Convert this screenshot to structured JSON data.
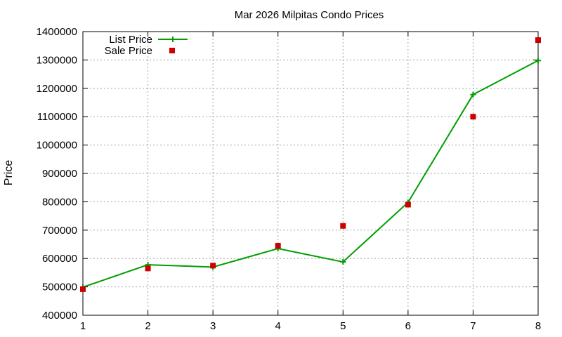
{
  "chart_data": {
    "type": "line",
    "title": "Mar 2026 Milpitas Condo Prices",
    "xlabel": "",
    "ylabel": "Price",
    "x": [
      1,
      2,
      3,
      4,
      5,
      6,
      7,
      8
    ],
    "xlim": [
      1,
      8
    ],
    "ylim": [
      400000,
      1400000
    ],
    "yticks": [
      400000,
      500000,
      600000,
      700000,
      800000,
      900000,
      1000000,
      1100000,
      1200000,
      1300000,
      1400000
    ],
    "grid": true,
    "legend_position": "top-left",
    "series": [
      {
        "name": "List Price",
        "style": "line+cross",
        "color": "#009e00",
        "values": [
          499000,
          578000,
          570000,
          635000,
          588000,
          798000,
          1178000,
          1298000
        ]
      },
      {
        "name": "Sale Price",
        "style": "square",
        "color": "#cc0000",
        "values": [
          492000,
          565000,
          575000,
          645000,
          715000,
          790000,
          1100000,
          1370000
        ]
      }
    ]
  }
}
